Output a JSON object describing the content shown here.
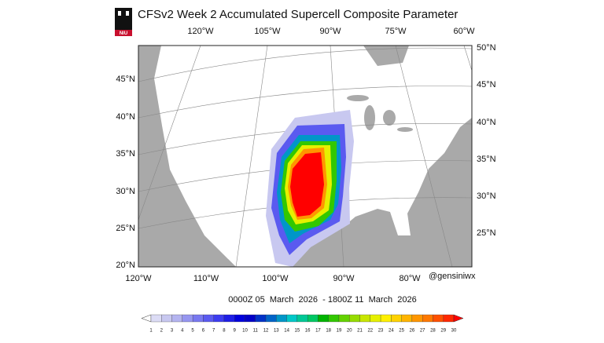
{
  "header": {
    "logo_text": "NIU",
    "title": "CFSv2 Week 2 Accumulated Supercell Composite Parameter"
  },
  "map": {
    "top_lon_labels": [
      "120°W",
      "105°W",
      "90°W",
      "75°W",
      "60°W"
    ],
    "left_lat_labels": [
      "45°N",
      "40°N",
      "35°N",
      "30°N",
      "25°N",
      "20°N"
    ],
    "right_lat_labels": [
      "50°N",
      "45°N",
      "40°N",
      "35°N",
      "30°N",
      "25°N"
    ],
    "bottom_lon_labels": [
      "120°W",
      "110°W",
      "100°W",
      "90°W",
      "80°W"
    ],
    "credit": "@gensiniwx",
    "valid_period": "0000Z 05  March  2026  - 1800Z 11  March  2026"
  },
  "colorbar": {
    "levels": [
      1,
      2,
      3,
      4,
      5,
      6,
      7,
      8,
      9,
      10,
      11,
      12,
      13,
      14,
      15,
      16,
      17,
      18,
      19,
      20,
      21,
      22,
      23,
      24,
      25,
      26,
      27,
      28,
      29,
      30
    ],
    "colors": [
      "#ffffff",
      "#dcdcf5",
      "#c8c8f0",
      "#b4b4f0",
      "#9696f0",
      "#7878f0",
      "#5a5af0",
      "#3c3cf0",
      "#1e1ee6",
      "#0000dc",
      "#0000c8",
      "#0032c8",
      "#0064c8",
      "#0096c8",
      "#00c8c8",
      "#00c896",
      "#00c864",
      "#00b400",
      "#32c800",
      "#64d200",
      "#96dc00",
      "#c8e600",
      "#e6f000",
      "#fff000",
      "#ffd200",
      "#ffb400",
      "#ff9600",
      "#ff7800",
      "#ff5000",
      "#ff2800",
      "#ff0000"
    ]
  }
}
